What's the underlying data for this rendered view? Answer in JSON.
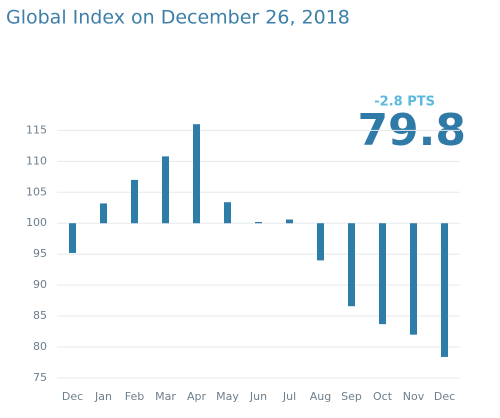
{
  "chart_data": {
    "type": "bar",
    "title": "Global Index on December 26, 2018",
    "change_label": "-2.8 PTS",
    "current_value_label": "79.8",
    "categories": [
      "Dec",
      "Jan",
      "Feb",
      "Mar",
      "Apr",
      "May",
      "Jun",
      "Jul",
      "Aug",
      "Sep",
      "Oct",
      "Nov",
      "Dec"
    ],
    "values": [
      95.2,
      103.2,
      107,
      110.8,
      116,
      103.4,
      100.2,
      100.6,
      94,
      86.6,
      83.7,
      82,
      78.4
    ],
    "baseline": 100,
    "color": "#2e7ca8",
    "ylim": [
      75,
      117
    ],
    "yticks": [
      75,
      80,
      85,
      90,
      95,
      100,
      105,
      110,
      115
    ],
    "grid": true
  }
}
